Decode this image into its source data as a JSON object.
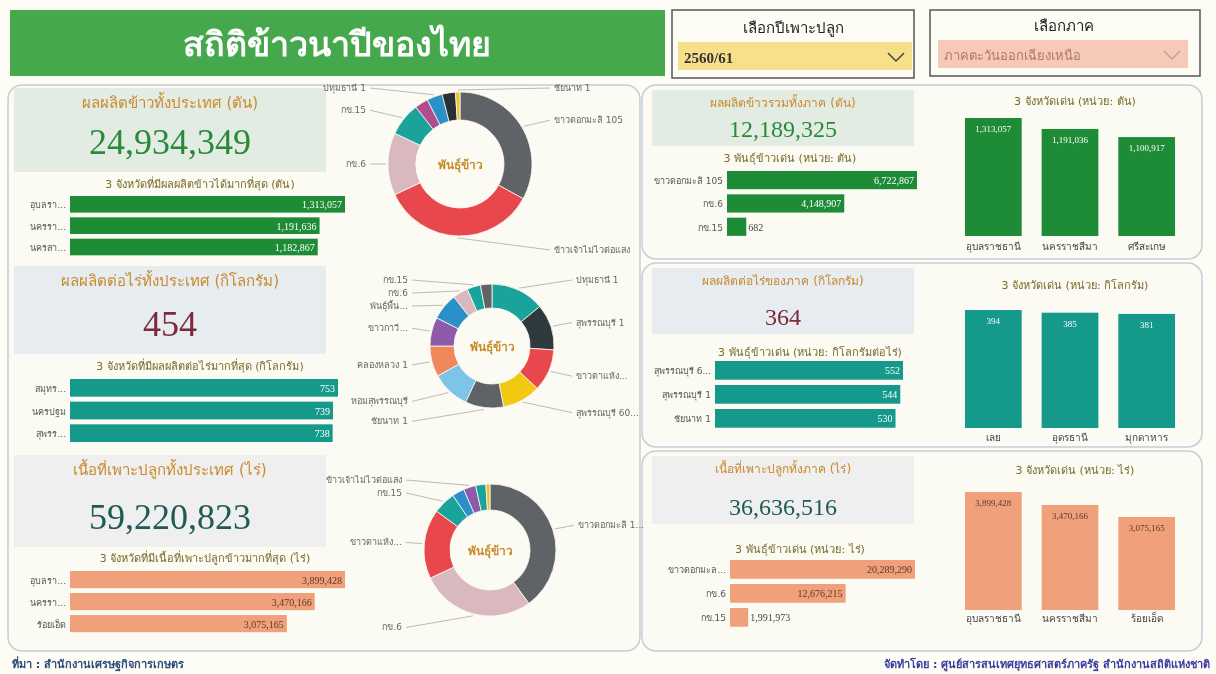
{
  "chart_data": [
    {
      "type": "other",
      "title": "สถิติข้าวนาปีของไทย",
      "annotations": [
        "เลือกปีเพาะปลูก",
        "2560/61",
        "เลือกภาค",
        "ภาคตะวันออกเฉียงเหนือ"
      ]
    },
    {
      "type": "other",
      "title": "ผลผลิตข้าวทั้งประเทศ (ตัน)",
      "annotations": [
        "24,934,349"
      ],
      "color": "#2a8a3c"
    },
    {
      "type": "bar",
      "orientation": "horizontal",
      "title": "3 จังหวัดที่มีผลผลิตข้าวได้มากที่สุด (ตัน)",
      "categories": [
        "อุบลรา...",
        "นครรา...",
        "นครสา..."
      ],
      "values": [
        1313057,
        1191636,
        1182867
      ],
      "value_labels": [
        "1,313,057",
        "1,191,636",
        "1,182,867"
      ],
      "color": "#1e8c36"
    },
    {
      "type": "donut",
      "title": "พันธุ์ข้าว",
      "categories": [
        "ขาวดอกมะลิ 105",
        "ข้าวเจ้าไม่ไวต่อแสง",
        "กข.6",
        "กข.15",
        null,
        "ปทุมธานี 1",
        null,
        "ชัยนาท 1"
      ],
      "values": [
        33,
        35,
        14,
        7.5,
        3,
        3.5,
        3,
        1
      ],
      "colors": [
        "#5f6368",
        "#e8474c",
        "#d9b8bf",
        "#1aa39a",
        "#b04d8f",
        "#2b8fc8",
        "#2a2f33",
        "#e8c33a"
      ]
    },
    {
      "type": "other",
      "title": "ผลผลิตต่อไร่ทั้งประเทศ (กิโลกรัม)",
      "annotations": [
        "454"
      ],
      "color": "#7a2a3a"
    },
    {
      "type": "bar",
      "orientation": "horizontal",
      "title": "3 จังหวัดที่มีผลผลิตต่อไร่มากที่สุด (กิโลกรัม)",
      "categories": [
        "สมุทร...",
        "นครปฐม",
        "สุพรร..."
      ],
      "values": [
        753,
        739,
        738
      ],
      "color": "#14998a",
      "data_labels": true
    },
    {
      "type": "donut",
      "title": "พันธุ์ข้าว",
      "categories": [
        "ปทุมธานี 1",
        "สุพรรณบุรี 1",
        "ขาวตาแห้ง...",
        "สุพรรณบุรี 60...",
        "ชัยนาท 1",
        "หอมสุพรรณบุรี",
        "คลองหลวง 1",
        "ขาวกาวี...",
        "พันธุ์พื้น...",
        "กข.6",
        "กข.15",
        null
      ],
      "values": [
        14,
        12,
        11,
        10,
        10,
        10,
        8,
        7.5,
        7,
        4,
        3.5,
        3
      ],
      "colors": [
        "#1aa39a",
        "#2f3a3e",
        "#e8474c",
        "#f2c811",
        "#5f6368",
        "#7ec3e8",
        "#f0875a",
        "#8e5ba8",
        "#2b8fc8",
        "#d9b8bf",
        "#1aa39a",
        "#5f6368"
      ]
    },
    {
      "type": "other",
      "title": "เนื้อที่เพาะปลูกทั้งประเทศ (ไร่)",
      "annotations": [
        "59,220,823"
      ],
      "color": "#1f5a55"
    },
    {
      "type": "bar",
      "orientation": "horizontal",
      "title": "3 จังหวัดที่มีเนื้อที่เพาะปลูกข้าวมากที่สุด (ไร่)",
      "categories": [
        "อุบลรา...",
        "นครรา...",
        "ร้อยเอ็ด"
      ],
      "values": [
        3899428,
        3470166,
        3075165
      ],
      "value_labels": [
        "3,899,428",
        "3,470,166",
        "3,075,165"
      ],
      "color": "#f0a07a"
    },
    {
      "type": "donut",
      "title": "พันธุ์ข้าว",
      "categories": [
        "ขาวดอกมะลิ 1...",
        "กข.6",
        "ขาวตาแห้ง...",
        "กข.15",
        null,
        "ข้าวเจ้าไม่ไวต่อแสง",
        null,
        null
      ],
      "values": [
        40,
        28,
        17,
        5.5,
        3,
        3,
        2.5,
        1
      ],
      "colors": [
        "#5f6368",
        "#d9b8bf",
        "#e8474c",
        "#1aa39a",
        "#2b8fc8",
        "#8e5ba8",
        "#1aa39a",
        "#e8c33a"
      ]
    },
    {
      "type": "other",
      "title": "ผลผลิตข้าวรวมทั้งภาค (ตัน)",
      "annotations": [
        "12,189,325"
      ],
      "color": "#2a8a3c"
    },
    {
      "type": "bar",
      "orientation": "horizontal",
      "title": "3 พันธุ์ข้าวเด่น (หน่วย: ตัน)",
      "categories": [
        "ขาวดอกมะลิ 105",
        "กข.6",
        "กข.15"
      ],
      "values": [
        6722867,
        4148907,
        682000
      ],
      "value_labels": [
        "6,722,867",
        "4,148,907",
        null
      ],
      "annotations": [
        "682"
      ],
      "color": "#1e8c36"
    },
    {
      "type": "bar",
      "title": "3 จังหวัดเด่น (หน่วย: ตัน)",
      "categories": [
        "อุบลราชธานี",
        "นครราชสีมา",
        "ศรีสะเกษ"
      ],
      "values": [
        1313057,
        1191036,
        1100917
      ],
      "value_labels": [
        "1,313,057",
        "1,191,036",
        "1,100,917"
      ],
      "color": "#1e8c36"
    },
    {
      "type": "other",
      "title": "ผลผลิตต่อไร่ของภาค (กิโลกรัม)",
      "annotations": [
        "364"
      ],
      "color": "#7a2a3a"
    },
    {
      "type": "bar",
      "orientation": "horizontal",
      "title": "3 พันธุ์ข้าวเด่น (หน่วย: กิโลกรัมต่อไร่)",
      "categories": [
        "สุพรรณบุรี 6...",
        "สุพรรณบุรี 1",
        "ชัยนาท 1"
      ],
      "values": [
        552,
        544,
        530
      ],
      "color": "#14998a",
      "data_labels": true
    },
    {
      "type": "bar",
      "title": "3 จังหวัดเด่น (หน่วย: กิโลกรัม)",
      "categories": [
        "เลย",
        "อุดรธานี",
        "มุกดาหาร"
      ],
      "values": [
        394,
        385,
        381
      ],
      "color": "#14998a",
      "data_labels": true
    },
    {
      "type": "other",
      "title": "เนื้อที่เพาะปลูกทั้งภาค (ไร่)",
      "annotations": [
        "36,636,516"
      ],
      "color": "#1f5a55"
    },
    {
      "type": "bar",
      "orientation": "horizontal",
      "title": "3 พันธุ์ข้าวเด่น (หน่วย: ไร่)",
      "categories": [
        "ขาวดอกมะล...",
        "กข.6",
        "กข.15"
      ],
      "values": [
        20289290,
        12676215,
        1991973
      ],
      "value_labels": [
        "20,289,290",
        "12,676,215",
        "1,991,973"
      ],
      "color": "#f0a07a"
    },
    {
      "type": "bar",
      "title": "3 จังหวัดเด่น (หน่วย: ไร่)",
      "categories": [
        "อุบลราชธานี",
        "นครราชสีมา",
        "ร้อยเอ็ด"
      ],
      "values": [
        3899428,
        3470166,
        3075165
      ],
      "value_labels": [
        "3,899,428",
        "3,470,166",
        "3,075,165"
      ],
      "color": "#f0a07a"
    },
    {
      "type": "other",
      "annotations": [
        "ที่มา : สำนักงานเศรษฐกิจการเกษตร",
        "จัดทำโดย : ศูนย์สารสนเทศยุทธศาสตร์ภาครัฐ สำนักงานสถิติแห่งชาติ"
      ]
    }
  ]
}
